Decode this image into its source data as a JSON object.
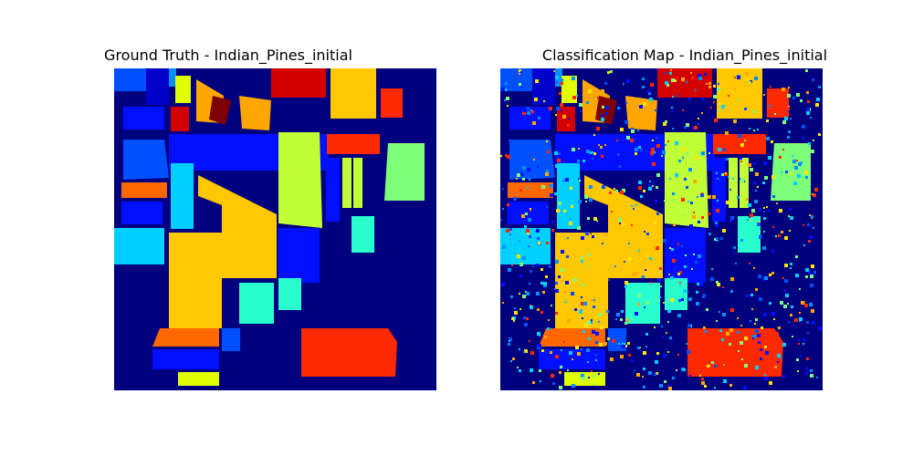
{
  "figure": {
    "left_title": "Ground Truth - Indian_Pines_initial",
    "right_title": "Classification Map - Indian_Pines_initial"
  },
  "chart_data": [
    {
      "type": "heatmap",
      "title": "Ground Truth - Indian_Pines_initial",
      "colormap": "jet",
      "grid": false,
      "axes_visible": false,
      "description_hint": "Indian Pines 145x145 label map, 17 classes (0 = background)"
    },
    {
      "type": "heatmap",
      "title": "Classification Map - Indian_Pines_initial",
      "colormap": "jet",
      "grid": false,
      "axes_visible": false
    }
  ],
  "colors": {
    "background": "#00007f",
    "c1": "#0000cc",
    "c2": "#0010ff",
    "c3": "#0050ff",
    "c4": "#0090ff",
    "c5": "#00d0ff",
    "c6": "#29ffce",
    "c7": "#7dff7a",
    "c8": "#c1ff36",
    "c9": "#ffe600",
    "c10": "#ffa700",
    "c11": "#ff6800",
    "c12": "#ff2900",
    "c13": "#d30000",
    "c14": "#7f0000",
    "yellow_gold": "#ffc800",
    "cyan": "#00c8ff",
    "lime": "#e0ff00"
  }
}
